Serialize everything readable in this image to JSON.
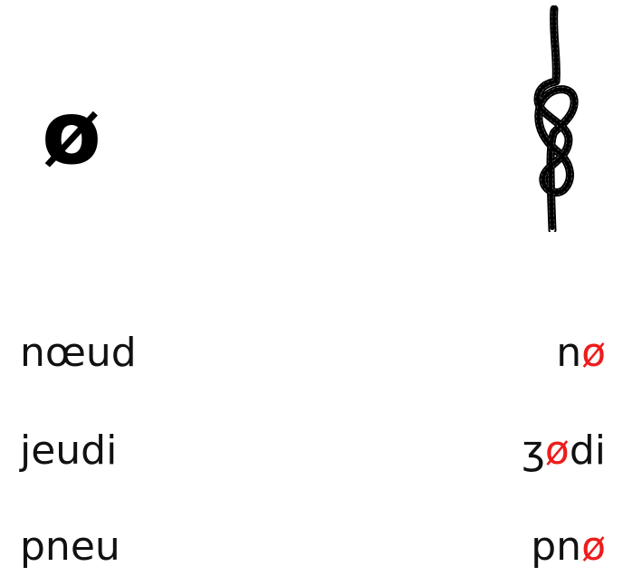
{
  "header": {
    "symbol": "ø"
  },
  "colors": {
    "highlight": "#ee1c1c",
    "text": "#111111"
  },
  "icons": {
    "illustration": "figure-eight-knot-rope-icon"
  },
  "words": [
    {
      "spelling": "nœud",
      "phonetic_pre": "n",
      "phonetic_vowel": "ø",
      "phonetic_post": ""
    },
    {
      "spelling": "jeudi",
      "phonetic_pre": "ʒ",
      "phonetic_vowel": "ø",
      "phonetic_post": "di"
    },
    {
      "spelling": "pneu",
      "phonetic_pre": "pn",
      "phonetic_vowel": "ø",
      "phonetic_post": ""
    }
  ]
}
